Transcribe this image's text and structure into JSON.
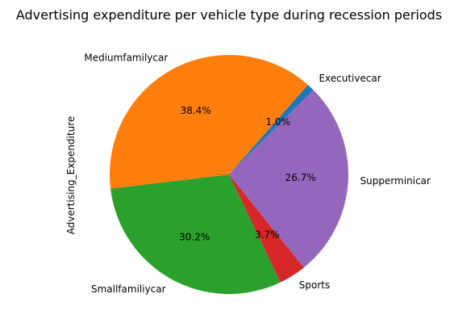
{
  "chart_data": {
    "type": "pie",
    "title": "Advertising expenditure per vehicle type during recession periods",
    "ylabel": "Advertising_Expenditure",
    "start_angle_deg": 45,
    "direction": "counterclockwise",
    "slices": [
      {
        "label": "Executivecar",
        "percent": 1.0,
        "pct_text": "1.0%",
        "color": "#1f77b4"
      },
      {
        "label": "Mediumfamilycar",
        "percent": 38.4,
        "pct_text": "38.4%",
        "color": "#ff7f0e"
      },
      {
        "label": "Smallfamiliycar",
        "percent": 30.2,
        "pct_text": "30.2%",
        "color": "#2ca02c"
      },
      {
        "label": "Sports",
        "percent": 3.7,
        "pct_text": "3.7%",
        "color": "#d62728"
      },
      {
        "label": "Supperminicar",
        "percent": 26.7,
        "pct_text": "26.7%",
        "color": "#9467bd"
      }
    ]
  }
}
